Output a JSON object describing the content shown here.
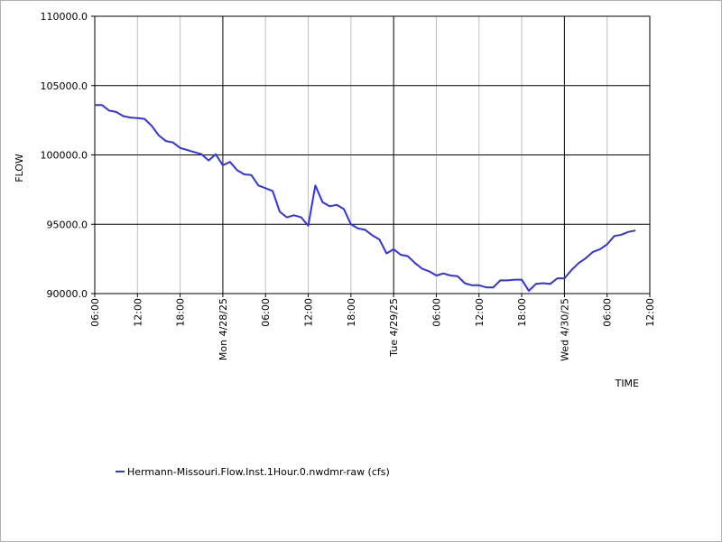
{
  "chart_data": {
    "type": "line",
    "xlabel": "TIME",
    "ylabel": "FLOW",
    "ylim": [
      90000,
      110000
    ],
    "y_ticks": [
      {
        "value": 90000,
        "label": "90000.0"
      },
      {
        "value": 95000,
        "label": "95000.0"
      },
      {
        "value": 100000,
        "label": "100000.0"
      },
      {
        "value": 105000,
        "label": "105000.0"
      },
      {
        "value": 110000,
        "label": "110000.0"
      }
    ],
    "x_range_hours": [
      0,
      78
    ],
    "x_ticks": [
      {
        "hour": 0,
        "label": "06:00",
        "major": false
      },
      {
        "hour": 6,
        "label": "12:00",
        "major": false
      },
      {
        "hour": 12,
        "label": "18:00",
        "major": false
      },
      {
        "hour": 18,
        "label": "Mon 4/28/25",
        "major": true
      },
      {
        "hour": 24,
        "label": "06:00",
        "major": false
      },
      {
        "hour": 30,
        "label": "12:00",
        "major": false
      },
      {
        "hour": 36,
        "label": "18:00",
        "major": false
      },
      {
        "hour": 42,
        "label": "Tue 4/29/25",
        "major": true
      },
      {
        "hour": 48,
        "label": "06:00",
        "major": false
      },
      {
        "hour": 54,
        "label": "12:00",
        "major": false
      },
      {
        "hour": 60,
        "label": "18:00",
        "major": false
      },
      {
        "hour": 66,
        "label": "Wed 4/30/25",
        "major": true
      },
      {
        "hour": 72,
        "label": "06:00",
        "major": false
      },
      {
        "hour": 78,
        "label": "12:00",
        "major": false
      }
    ],
    "grid": true,
    "legend_position": "bottom-left",
    "series": [
      {
        "name": "Hermann-Missouri.Flow.Inst.1Hour.0.nwdmr-raw (cfs)",
        "color": "#3333e6",
        "x_hours": [
          0,
          1,
          2,
          3,
          4,
          5,
          6,
          7,
          8,
          9,
          10,
          11,
          12,
          13,
          14,
          15,
          16,
          17,
          18,
          19,
          20,
          21,
          22,
          23,
          24,
          25,
          26,
          27,
          28,
          29,
          30,
          31,
          32,
          33,
          34,
          35,
          36,
          37,
          38,
          39,
          40,
          41,
          42,
          43,
          44,
          45,
          46,
          47,
          48,
          49,
          50,
          51,
          52,
          53,
          54,
          55,
          56,
          57,
          58,
          59,
          60,
          61,
          62,
          63,
          64,
          65,
          66,
          67,
          68,
          69,
          70,
          71,
          72,
          73,
          74,
          75,
          76
        ],
        "values": [
          103600,
          103600,
          103200,
          103100,
          102800,
          102700,
          102650,
          102600,
          102100,
          101400,
          101000,
          100900,
          100500,
          100350,
          100200,
          100050,
          99600,
          100050,
          99250,
          99500,
          98900,
          98600,
          98550,
          97800,
          97600,
          97400,
          95900,
          95500,
          95650,
          95500,
          94900,
          97800,
          96600,
          96300,
          96400,
          96100,
          95000,
          94700,
          94600,
          94200,
          93900,
          92900,
          93200,
          92800,
          92700,
          92200,
          91800,
          91600,
          91300,
          91450,
          91300,
          91250,
          90750,
          90600,
          90600,
          90450,
          90450,
          90950,
          90950,
          91000,
          91000,
          90200,
          90700,
          90750,
          90700,
          91100,
          91100,
          91700,
          92200,
          92550,
          93000,
          93200,
          93550,
          94150,
          94250,
          94450,
          94550
        ]
      }
    ]
  }
}
